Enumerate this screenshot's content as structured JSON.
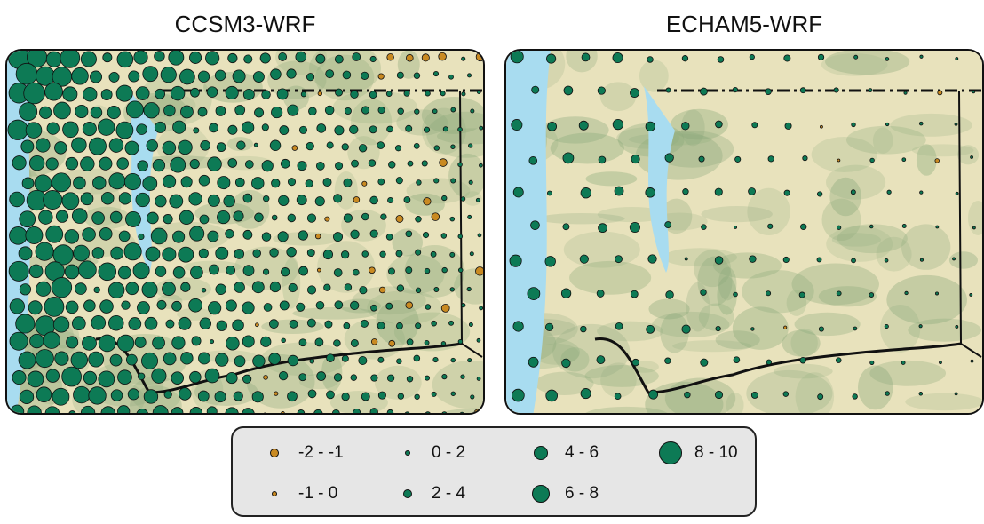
{
  "panels": [
    {
      "id": "left",
      "title": "CCSM3-WRF",
      "size_scale": 1.25
    },
    {
      "id": "right",
      "title": "ECHAM5-WRF",
      "size_scale": 0.55
    }
  ],
  "colors": {
    "positive": "#0d7a55",
    "negative": "#c98a22",
    "water": "#a8dcf0",
    "land": "#e8e2bc",
    "terrain": "#8aa87a"
  },
  "legend": {
    "items": [
      {
        "label": "-2 - -1",
        "sign": "negative",
        "min": -2,
        "max": -1
      },
      {
        "label": "0 - 2",
        "sign": "positive",
        "min": 0,
        "max": 2
      },
      {
        "label": "4 - 6",
        "sign": "positive",
        "min": 4,
        "max": 6
      },
      {
        "label": "8 - 10",
        "sign": "positive",
        "min": 8,
        "max": 10
      },
      {
        "label": "-1 - 0",
        "sign": "negative",
        "min": -1,
        "max": 0
      },
      {
        "label": "2 - 4",
        "sign": "positive",
        "min": 2,
        "max": 4
      },
      {
        "label": "6 - 8",
        "sign": "positive",
        "min": 6,
        "max": 8
      }
    ]
  }
}
